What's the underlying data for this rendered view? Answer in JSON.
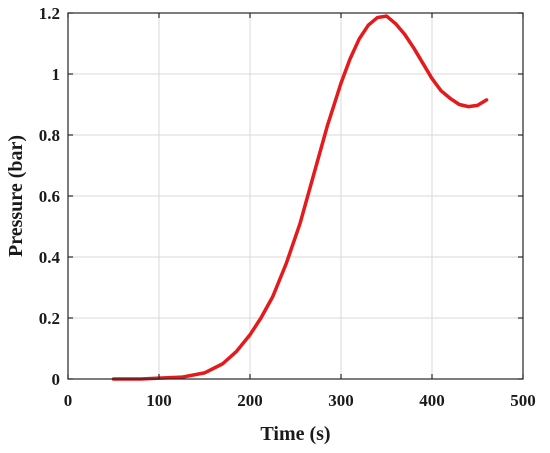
{
  "chart_data": {
    "type": "line",
    "title": "",
    "xlabel": "Time (s)",
    "ylabel": "Pressure (bar)",
    "xlim": [
      0,
      500
    ],
    "ylim": [
      0,
      1.2
    ],
    "xticks": [
      0,
      100,
      200,
      300,
      400,
      500
    ],
    "yticks": [
      0,
      0.2,
      0.4,
      0.6,
      0.8,
      1,
      1.2
    ],
    "grid": true,
    "legend": "none",
    "series": [
      {
        "color": "#e41a1c",
        "x": [
          50,
          80,
          100,
          125,
          150,
          170,
          185,
          200,
          212,
          225,
          240,
          255,
          270,
          285,
          300,
          310,
          320,
          330,
          340,
          350,
          360,
          370,
          380,
          390,
          400,
          410,
          420,
          430,
          440,
          450,
          460
        ],
        "y": [
          0.0,
          0.0,
          0.003,
          0.006,
          0.02,
          0.05,
          0.09,
          0.145,
          0.2,
          0.27,
          0.38,
          0.51,
          0.67,
          0.83,
          0.97,
          1.05,
          1.115,
          1.16,
          1.185,
          1.19,
          1.165,
          1.13,
          1.085,
          1.035,
          0.985,
          0.945,
          0.92,
          0.9,
          0.893,
          0.897,
          0.915
        ]
      }
    ]
  }
}
